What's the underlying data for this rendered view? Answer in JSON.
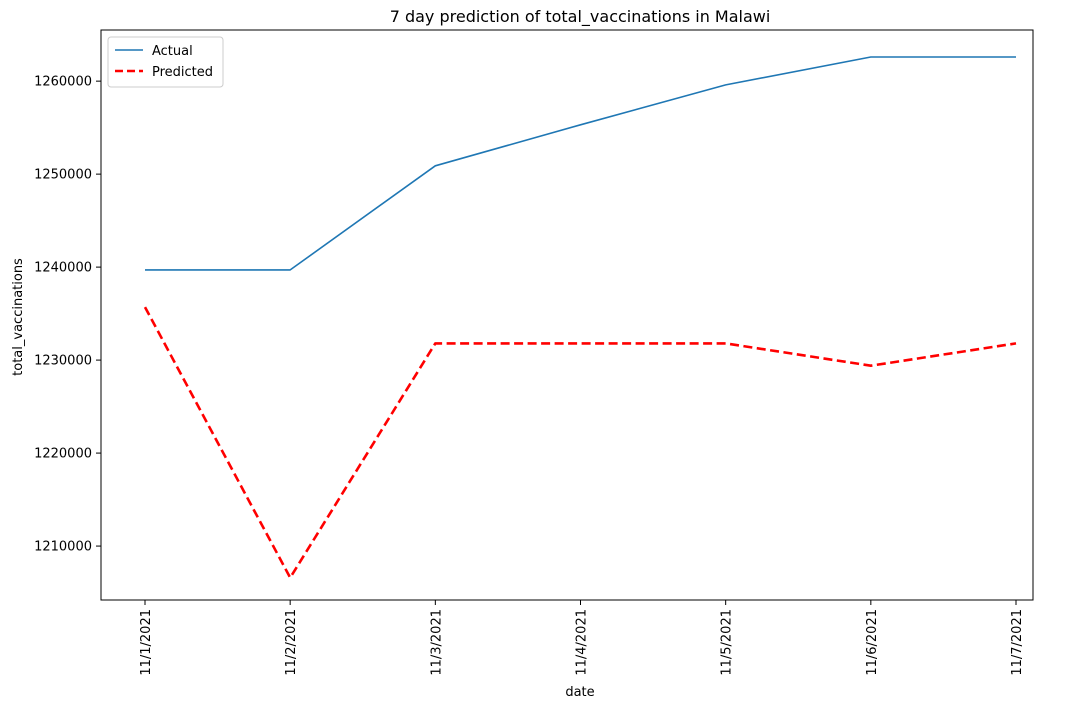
{
  "chart_data": {
    "type": "line",
    "title": "7 day prediction of total_vaccinations in Malawi",
    "xlabel": "date",
    "ylabel": "total_vaccinations",
    "categories": [
      "11/1/2021",
      "11/2/2021",
      "11/3/2021",
      "11/4/2021",
      "11/5/2021",
      "11/6/2021",
      "11/7/2021"
    ],
    "yticks": [
      1210000,
      1220000,
      1230000,
      1240000,
      1250000,
      1260000
    ],
    "ylim": [
      1204200,
      1265500
    ],
    "grid": false,
    "legend_position": "top-left",
    "series": [
      {
        "name": "Actual",
        "color": "#1f77b4",
        "style": "solid",
        "values": [
          1239700,
          1239700,
          1250900,
          1255300,
          1259600,
          1262600,
          1262600
        ]
      },
      {
        "name": "Predicted",
        "color": "#ff0000",
        "style": "dashed",
        "values": [
          1235700,
          1206600,
          1231800,
          1231800,
          1231800,
          1229400,
          1231800
        ]
      }
    ]
  }
}
